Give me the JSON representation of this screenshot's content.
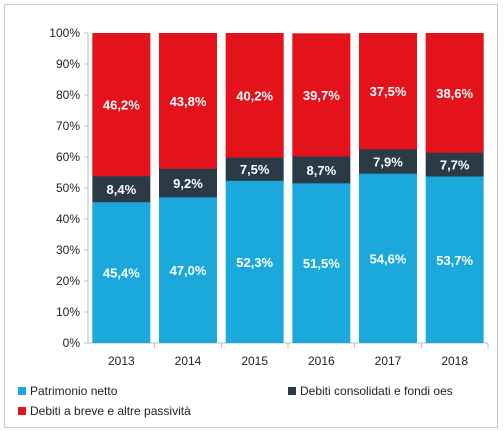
{
  "chart_data": {
    "type": "bar",
    "stacked": true,
    "categories": [
      "2013",
      "2014",
      "2015",
      "2016",
      "2017",
      "2018"
    ],
    "series": [
      {
        "name": "Patrimonio netto",
        "values": [
          45.4,
          47.0,
          52.3,
          51.5,
          54.6,
          53.7
        ],
        "labels": [
          "45,4%",
          "47,0%",
          "52,3%",
          "51,5%",
          "54,6%",
          "53,7%"
        ],
        "color": "#1ba9dc"
      },
      {
        "name": "Debiti consolidati e fondi oes",
        "values": [
          8.4,
          9.2,
          7.5,
          8.7,
          7.9,
          7.7
        ],
        "labels": [
          "8,4%",
          "9,2%",
          "7,5%",
          "8,7%",
          "7,9%",
          "7,7%"
        ],
        "color": "#2b3a47"
      },
      {
        "name": "Debiti a breve e altre passività",
        "values": [
          46.2,
          43.8,
          40.2,
          39.7,
          37.5,
          38.6
        ],
        "labels": [
          "46,2%",
          "43,8%",
          "40,2%",
          "39,7%",
          "37,5%",
          "38,6%"
        ],
        "color": "#e3121b"
      }
    ],
    "yticks": [
      "0%",
      "10%",
      "20%",
      "30%",
      "40%",
      "50%",
      "60%",
      "70%",
      "80%",
      "90%",
      "100%"
    ],
    "ylim": [
      0,
      100
    ],
    "grid": false,
    "legend_position": "bottom"
  }
}
